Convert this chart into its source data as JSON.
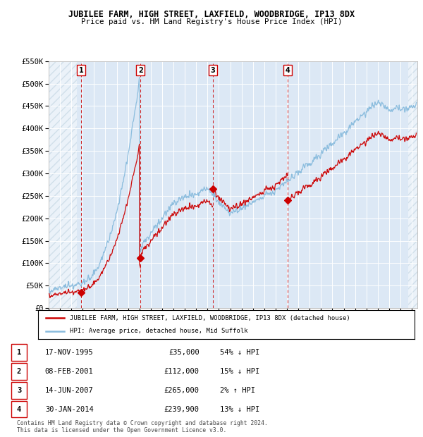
{
  "title": "JUBILEE FARM, HIGH STREET, LAXFIELD, WOODBRIDGE, IP13 8DX",
  "subtitle": "Price paid vs. HM Land Registry's House Price Index (HPI)",
  "sales": [
    {
      "label": 1,
      "date_str": "17-NOV-1995",
      "year": 1995.88,
      "price": 35000
    },
    {
      "label": 2,
      "date_str": "08-FEB-2001",
      "year": 2001.1,
      "price": 112000
    },
    {
      "label": 3,
      "date_str": "14-JUN-2007",
      "year": 2007.45,
      "price": 265000
    },
    {
      "label": 4,
      "date_str": "30-JAN-2014",
      "year": 2014.08,
      "price": 239900
    }
  ],
  "sale_color": "#cc0000",
  "hpi_line_color": "#88bbdd",
  "vline_color": "#cc0000",
  "box_color": "#cc0000",
  "ylim": [
    0,
    550000
  ],
  "ytick_labels": [
    "£0",
    "£50K",
    "£100K",
    "£150K",
    "£200K",
    "£250K",
    "£300K",
    "£350K",
    "£400K",
    "£450K",
    "£500K",
    "£550K"
  ],
  "ytick_values": [
    0,
    50000,
    100000,
    150000,
    200000,
    250000,
    300000,
    350000,
    400000,
    450000,
    500000,
    550000
  ],
  "xlim_start": 1993.0,
  "xlim_end": 2025.5,
  "plot_bg": "#dce8f5",
  "legend_label_red": "JUBILEE FARM, HIGH STREET, LAXFIELD, WOODBRIDGE, IP13 8DX (detached house)",
  "legend_label_blue": "HPI: Average price, detached house, Mid Suffolk",
  "footer": "Contains HM Land Registry data © Crown copyright and database right 2024.\nThis data is licensed under the Open Government Licence v3.0.",
  "table_rows": [
    [
      "1",
      "17-NOV-1995",
      "£35,000",
      "54% ↓ HPI"
    ],
    [
      "2",
      "08-FEB-2001",
      "£112,000",
      "15% ↓ HPI"
    ],
    [
      "3",
      "14-JUN-2007",
      "£265,000",
      "2% ↑ HPI"
    ],
    [
      "4",
      "30-JAN-2014",
      "£239,900",
      "13% ↓ HPI"
    ]
  ]
}
